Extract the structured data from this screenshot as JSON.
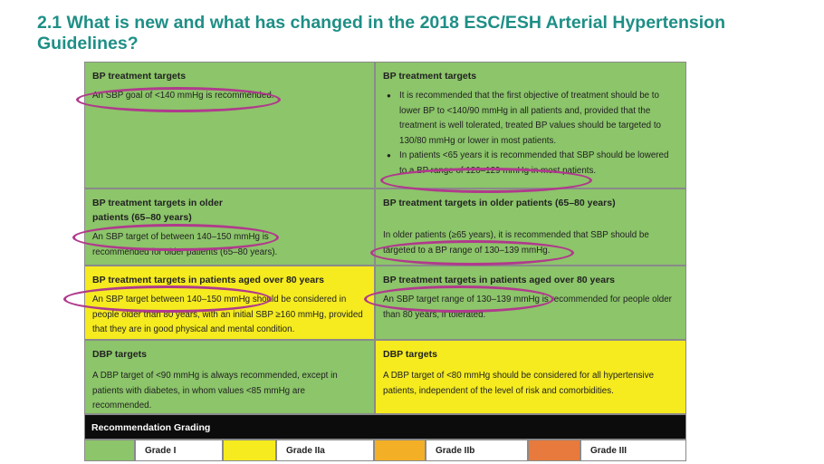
{
  "title": "2.1 What is new and what has changed in the 2018 ESC/ESH Arterial Hypertension Guidelines?",
  "rows": [
    {
      "left": {
        "heading": "BP treatment targets",
        "text": "An SBP goal of <140 mmHg is recommended."
      },
      "right": {
        "heading": "BP treatment targets",
        "bullets": [
          "It is recommended that the first objective of treatment should be to lower BP to <140/90 mmHg in all patients and, provided that the treatment is well tolerated, treated BP values should be targeted to 130/80 mmHg or lower in most patients.",
          "In patients <65 years it is recommended that SBP should be lowered to a BP range of 120–129 mmHg in most patients."
        ]
      }
    },
    {
      "left": {
        "heading": "BP treatment targets in older patients (65–80 years)",
        "text": "An SBP target of between 140–150 mmHg is recommended for older patients (65–80 years)."
      },
      "right": {
        "heading": "BP treatment targets in older patients (65–80 years)",
        "text": "In older patients (≥65 years), it is recommended that SBP should be targeted to a BP range of 130–139 mmHg."
      }
    },
    {
      "left": {
        "heading": "BP treatment targets in patients aged over 80 years",
        "text": "An SBP target between 140–150 mmHg should be considered in people older than 80 years, with an initial SBP ≥160 mmHg, provided that they are in good physical and mental condition."
      },
      "right": {
        "heading": "BP treatment targets in patients aged over 80 years",
        "text": "An SBP target range of 130–139 mmHg is recommended for people older than 80 years, if tolerated."
      }
    },
    {
      "left": {
        "heading": "DBP targets",
        "text": "A DBP target of <90 mmHg is always recommended, except in patients with diabetes, in whom values <85 mmHg are recommended."
      },
      "right": {
        "heading": "DBP targets",
        "text": "A DBP target of <80 mmHg should be considered for all hypertensive patients, independent of the level of risk and comorbidities."
      }
    }
  ],
  "grading": {
    "title": "Recommendation Grading",
    "grades": [
      {
        "label": "Grade I",
        "color": "#8cc56a"
      },
      {
        "label": "Grade IIa",
        "color": "#f5eb1f"
      },
      {
        "label": "Grade IIb",
        "color": "#f3b026"
      },
      {
        "label": "Grade III",
        "color": "#e77a3c"
      }
    ]
  },
  "colors": {
    "title": "#1e8f86",
    "highlight": "#b03a8c",
    "grade_i": "#8cc56a",
    "grade_iia": "#f5eb1f"
  }
}
